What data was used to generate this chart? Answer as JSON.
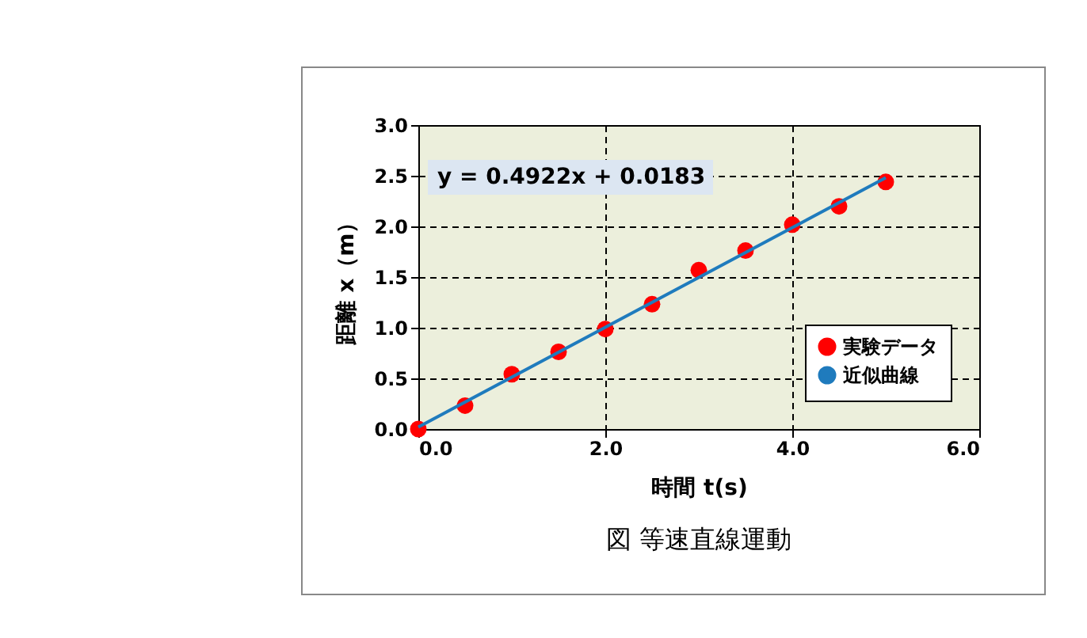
{
  "chart_data": {
    "type": "scatter",
    "title": "図 等速直線運動",
    "xlabel": "時間 t(s)",
    "ylabel": "距離 x（m）",
    "annotations": [
      "y = 0.4922x + 0.0183"
    ],
    "x": [
      0.0,
      0.5,
      1.0,
      1.5,
      2.0,
      2.5,
      3.0,
      3.5,
      4.0,
      4.5,
      5.0
    ],
    "series": [
      {
        "name": "実験データ",
        "color": "#ff0000",
        "values": [
          0.0,
          0.231,
          0.541,
          0.762,
          0.987,
          1.232,
          1.568,
          1.761,
          2.017,
          2.198,
          2.439
        ]
      },
      {
        "name": "近似曲線",
        "type": "line",
        "marker": "none",
        "color": "#1f7bbd",
        "x": [
          0,
          5
        ],
        "values": [
          0.02,
          2.48
        ]
      }
    ],
    "xlim": [
      0,
      6
    ],
    "ylim": [
      0,
      3
    ],
    "xticks": [
      {
        "value": 0,
        "label": "0.0"
      },
      {
        "value": 2,
        "label": "2.0"
      },
      {
        "value": 4,
        "label": "4.0"
      },
      {
        "value": 6,
        "label": "6.0"
      }
    ],
    "yticks": [
      {
        "value": 0,
        "label": "0.0"
      },
      {
        "value": 0.5,
        "label": "0.5"
      },
      {
        "value": 1,
        "label": "1.0"
      },
      {
        "value": 1.5,
        "label": "1.5"
      },
      {
        "value": 2,
        "label": "2.0"
      },
      {
        "value": 2.5,
        "label": "2.5"
      },
      {
        "value": 3,
        "label": "3.0"
      }
    ],
    "grid": true,
    "legend": "bottom right",
    "marker": "circle"
  }
}
